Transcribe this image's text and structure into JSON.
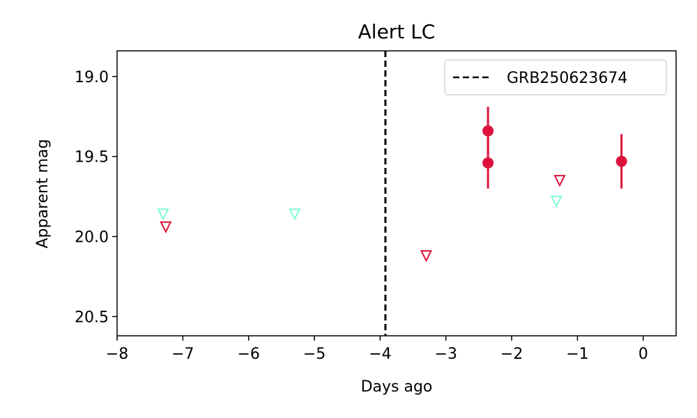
{
  "chart_data": {
    "type": "scatter",
    "title": "Alert LC",
    "xlabel": "Days ago",
    "ylabel": "Apparent mag",
    "xlim": [
      -8,
      0.5
    ],
    "ylim": [
      20.62,
      18.84
    ],
    "y_inverted": true,
    "xticks": [
      -8,
      -7,
      -6,
      -5,
      -4,
      -3,
      -2,
      -1,
      0
    ],
    "xtick_labels": [
      "−8",
      "−7",
      "−6",
      "−5",
      "−4",
      "−3",
      "−2",
      "−1",
      "0"
    ],
    "yticks": [
      19.0,
      19.5,
      20.0,
      20.5
    ],
    "ytick_labels": [
      "19.0",
      "19.5",
      "20.0",
      "20.5"
    ],
    "grid": false,
    "legend": {
      "placement": "top-right",
      "entries": [
        {
          "label": "GRB250623674",
          "style": "dashed",
          "color": "#000000"
        }
      ]
    },
    "vline": {
      "x": -3.92,
      "label": "GRB250623674",
      "color": "#000000",
      "style": "dashed"
    },
    "series": [
      {
        "kind": "detection",
        "marker": "circle",
        "color": "#dc143c",
        "points": [
          {
            "x": -2.36,
            "y": 19.34,
            "err": 0.15
          },
          {
            "x": -2.36,
            "y": 19.54,
            "err": 0.16
          },
          {
            "x": -0.33,
            "y": 19.53,
            "err": 0.17
          }
        ]
      },
      {
        "kind": "upper_limit",
        "marker": "triangle-down-open",
        "color": "#dc143c",
        "points": [
          {
            "x": -7.26,
            "y": 19.94
          },
          {
            "x": -3.3,
            "y": 20.12
          },
          {
            "x": -1.27,
            "y": 19.65
          }
        ]
      },
      {
        "kind": "upper_limit",
        "marker": "triangle-down-open",
        "color": "#7fffd4",
        "points": [
          {
            "x": -7.3,
            "y": 19.86
          },
          {
            "x": -5.3,
            "y": 19.86
          },
          {
            "x": -1.32,
            "y": 19.78
          }
        ]
      }
    ]
  }
}
